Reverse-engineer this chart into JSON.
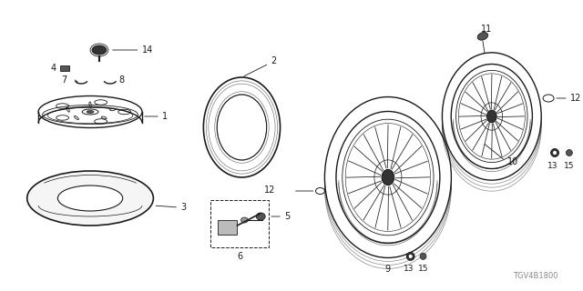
{
  "background_color": "#ffffff",
  "line_color": "#1a1a1a",
  "part_number": "TGV4B1800",
  "fig_width": 6.4,
  "fig_height": 3.2,
  "dpi": 100
}
